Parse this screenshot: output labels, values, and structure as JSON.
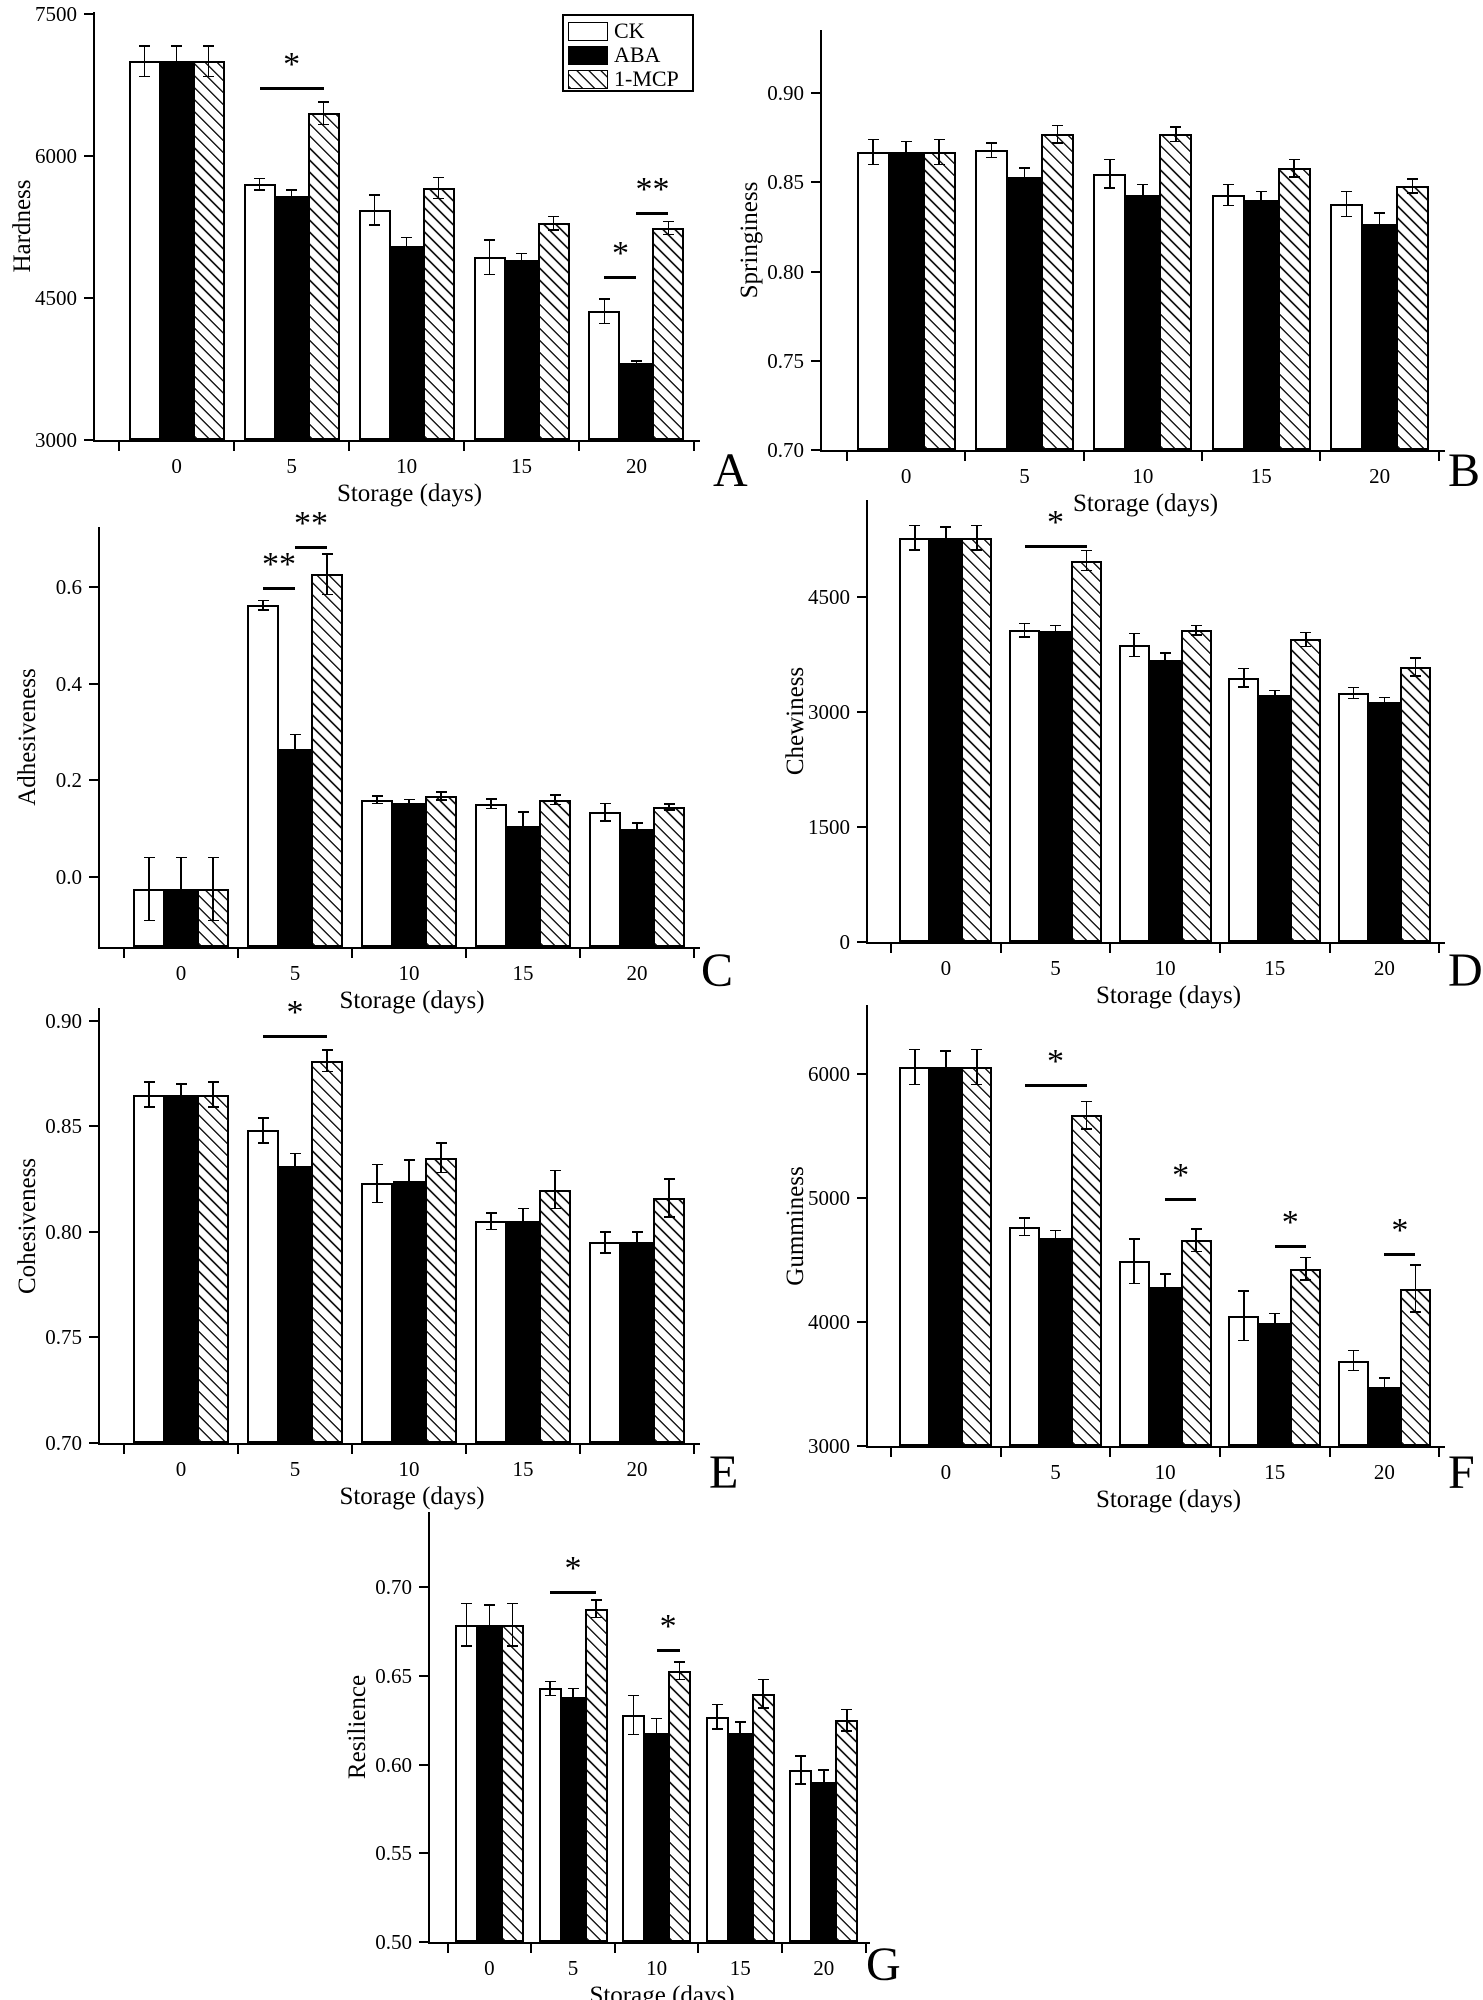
{
  "figure": {
    "background": "#ffffff",
    "text_color": "#000000"
  },
  "xlabel": "Storage (days)",
  "categories": [
    "0",
    "5",
    "10",
    "15",
    "20"
  ],
  "legend": {
    "position": "top-right-of-panel-A",
    "items": [
      {
        "label": "CK",
        "fill": "white"
      },
      {
        "label": "ABA",
        "fill": "black"
      },
      {
        "label": "1-MCP",
        "fill": "hatch"
      }
    ]
  },
  "chart_data": [
    {
      "panel": "A",
      "type": "bar",
      "ylabel": "Hardness",
      "ylim": [
        3000,
        7520
      ],
      "yticks": [
        3000,
        4500,
        6000,
        7500
      ],
      "ytick_decimals": 0,
      "grid": false,
      "categories": [
        "0",
        "5",
        "10",
        "15",
        "20"
      ],
      "series": [
        {
          "name": "CK",
          "values": [
            7000,
            5700,
            5430,
            4930,
            4360
          ],
          "errors": [
            160,
            60,
            160,
            180,
            130
          ]
        },
        {
          "name": "ABA",
          "values": [
            7000,
            5580,
            5050,
            4900,
            3810
          ],
          "errors": [
            160,
            60,
            90,
            70,
            25
          ]
        },
        {
          "name": "1-MCP",
          "values": [
            7000,
            6450,
            5660,
            5290,
            5240
          ],
          "errors": [
            160,
            120,
            110,
            70,
            70
          ]
        }
      ],
      "significance": [
        {
          "group": 1,
          "from": 0,
          "to": 2,
          "label": "*",
          "y": 6730
        },
        {
          "group": 4,
          "from": 0,
          "to": 1,
          "label": "*",
          "y": 4730
        },
        {
          "group": 4,
          "from": 1,
          "to": 2,
          "label": "**",
          "y": 5410
        }
      ]
    },
    {
      "panel": "B",
      "type": "bar",
      "ylabel": "Springiness",
      "ylim": [
        0.7,
        0.9355
      ],
      "yticks": [
        0.7,
        0.75,
        0.8,
        0.85,
        0.9
      ],
      "ytick_decimals": 2,
      "grid": false,
      "categories": [
        "0",
        "5",
        "10",
        "15",
        "20"
      ],
      "series": [
        {
          "name": "CK",
          "values": [
            0.867,
            0.868,
            0.855,
            0.843,
            0.838
          ],
          "errors": [
            0.007,
            0.004,
            0.008,
            0.006,
            0.007
          ]
        },
        {
          "name": "ABA",
          "values": [
            0.867,
            0.853,
            0.843,
            0.84,
            0.827
          ],
          "errors": [
            0.006,
            0.005,
            0.006,
            0.005,
            0.006
          ]
        },
        {
          "name": "1-MCP",
          "values": [
            0.867,
            0.877,
            0.877,
            0.858,
            0.848
          ],
          "errors": [
            0.007,
            0.005,
            0.004,
            0.005,
            0.004
          ]
        }
      ],
      "significance": []
    },
    {
      "panel": "C",
      "type": "bar",
      "ylabel": "Adhesiveness",
      "ylim": [
        -0.145,
        0.725
      ],
      "yticks": [
        0.0,
        0.2,
        0.4,
        0.6
      ],
      "ytick_decimals": 1,
      "grid": false,
      "categories": [
        "0",
        "5",
        "10",
        "15",
        "20"
      ],
      "series": [
        {
          "name": "CK",
          "values": [
            -0.025,
            0.563,
            0.16,
            0.152,
            0.134
          ],
          "errors": [
            0.065,
            0.01,
            0.008,
            0.01,
            0.018
          ]
        },
        {
          "name": "ABA",
          "values": [
            -0.025,
            0.265,
            0.154,
            0.105,
            0.1
          ],
          "errors": [
            0.065,
            0.03,
            0.007,
            0.03,
            0.012
          ]
        },
        {
          "name": "1-MCP",
          "values": [
            -0.025,
            0.627,
            0.168,
            0.16,
            0.145
          ],
          "errors": [
            0.065,
            0.042,
            0.008,
            0.01,
            0.006
          ]
        }
      ],
      "significance": [
        {
          "group": 1,
          "from": 0,
          "to": 1,
          "label": "**",
          "y": 0.6
        },
        {
          "group": 1,
          "from": 1,
          "to": 2,
          "label": "**",
          "y": 0.685
        }
      ]
    },
    {
      "panel": "D",
      "type": "bar",
      "ylabel": "Chewiness",
      "ylim": [
        0,
        5770
      ],
      "yticks": [
        0,
        1500,
        3000,
        4500
      ],
      "ytick_decimals": 0,
      "grid": false,
      "categories": [
        "0",
        "5",
        "10",
        "15",
        "20"
      ],
      "series": [
        {
          "name": "CK",
          "values": [
            5280,
            4070,
            3880,
            3450,
            3250
          ],
          "errors": [
            160,
            90,
            150,
            120,
            70
          ]
        },
        {
          "name": "ABA",
          "values": [
            5270,
            4060,
            3680,
            3220,
            3130
          ],
          "errors": [
            150,
            70,
            90,
            60,
            60
          ]
        },
        {
          "name": "1-MCP",
          "values": [
            5280,
            4980,
            4070,
            3950,
            3590
          ],
          "errors": [
            160,
            130,
            60,
            90,
            120
          ]
        }
      ],
      "significance": [
        {
          "group": 1,
          "from": 0,
          "to": 2,
          "label": "*",
          "y": 5180
        }
      ]
    },
    {
      "panel": "E",
      "type": "bar",
      "ylabel": "Cohesiveness",
      "ylim": [
        0.7,
        0.906
      ],
      "yticks": [
        0.7,
        0.75,
        0.8,
        0.85,
        0.9
      ],
      "ytick_decimals": 2,
      "grid": false,
      "categories": [
        "0",
        "5",
        "10",
        "15",
        "20"
      ],
      "series": [
        {
          "name": "CK",
          "values": [
            0.865,
            0.848,
            0.823,
            0.805,
            0.795
          ],
          "errors": [
            0.006,
            0.006,
            0.009,
            0.004,
            0.005
          ]
        },
        {
          "name": "ABA",
          "values": [
            0.865,
            0.831,
            0.824,
            0.805,
            0.795
          ],
          "errors": [
            0.005,
            0.006,
            0.01,
            0.006,
            0.005
          ]
        },
        {
          "name": "1-MCP",
          "values": [
            0.865,
            0.881,
            0.835,
            0.82,
            0.816
          ],
          "errors": [
            0.006,
            0.005,
            0.007,
            0.009,
            0.009
          ]
        }
      ],
      "significance": [
        {
          "group": 1,
          "from": 0,
          "to": 2,
          "label": "*",
          "y": 0.893
        }
      ]
    },
    {
      "panel": "F",
      "type": "bar",
      "ylabel": "Gumminess",
      "ylim": [
        3000,
        6560
      ],
      "yticks": [
        3000,
        4000,
        5000,
        6000
      ],
      "ytick_decimals": 0,
      "grid": false,
      "categories": [
        "0",
        "5",
        "10",
        "15",
        "20"
      ],
      "series": [
        {
          "name": "CK",
          "values": [
            6060,
            4770,
            4490,
            4050,
            3690
          ],
          "errors": [
            140,
            70,
            180,
            200,
            80
          ]
        },
        {
          "name": "ABA",
          "values": [
            6060,
            4680,
            4280,
            3990,
            3480
          ],
          "errors": [
            130,
            60,
            110,
            80,
            70
          ]
        },
        {
          "name": "1-MCP",
          "values": [
            6060,
            5670,
            4660,
            4430,
            4270
          ],
          "errors": [
            140,
            110,
            90,
            90,
            190
          ]
        }
      ],
      "significance": [
        {
          "group": 1,
          "from": 0,
          "to": 2,
          "label": "*",
          "y": 5920
        },
        {
          "group": 2,
          "from": 1,
          "to": 2,
          "label": "*",
          "y": 5000
        },
        {
          "group": 3,
          "from": 1,
          "to": 2,
          "label": "*",
          "y": 4620
        },
        {
          "group": 4,
          "from": 1,
          "to": 2,
          "label": "*",
          "y": 4560
        }
      ]
    },
    {
      "panel": "G",
      "type": "bar",
      "ylabel": "Resilience",
      "ylim": [
        0.5,
        0.7425
      ],
      "yticks": [
        0.5,
        0.55,
        0.6,
        0.65,
        0.7
      ],
      "ytick_decimals": 2,
      "grid": false,
      "categories": [
        "0",
        "5",
        "10",
        "15",
        "20"
      ],
      "series": [
        {
          "name": "CK",
          "values": [
            0.679,
            0.643,
            0.628,
            0.627,
            0.597
          ],
          "errors": [
            0.012,
            0.004,
            0.011,
            0.007,
            0.008
          ]
        },
        {
          "name": "ABA",
          "values": [
            0.679,
            0.638,
            0.618,
            0.618,
            0.59
          ],
          "errors": [
            0.011,
            0.005,
            0.008,
            0.006,
            0.007
          ]
        },
        {
          "name": "1-MCP",
          "values": [
            0.679,
            0.688,
            0.653,
            0.64,
            0.625
          ],
          "errors": [
            0.012,
            0.005,
            0.005,
            0.008,
            0.006
          ]
        }
      ],
      "significance": [
        {
          "group": 1,
          "from": 0,
          "to": 2,
          "label": "*",
          "y": 0.698
        },
        {
          "group": 2,
          "from": 1,
          "to": 2,
          "label": "*",
          "y": 0.665
        }
      ]
    }
  ]
}
